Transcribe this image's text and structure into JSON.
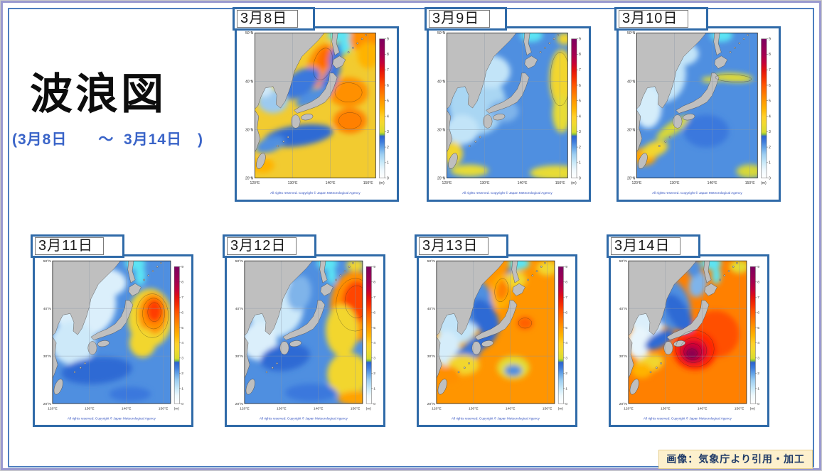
{
  "page": {
    "title": "波浪図",
    "subtitle": "(3月8日　　～  3月14日　)",
    "attribution": "画像：気象庁より引用・加工"
  },
  "map_common": {
    "lat_labels": [
      "50°N",
      "40°N",
      "30°N",
      "20°N"
    ],
    "lon_labels": [
      "120°E",
      "130°E",
      "140°E",
      "150°E"
    ],
    "unit": "(m)",
    "colorbar_ticks": [
      "0",
      "1",
      "2",
      "3",
      "4",
      "5",
      "6",
      "7",
      "8",
      "9"
    ],
    "copyright": "All rights reserved. Copyright © Japan Meteorological Agency",
    "copyright_color": "#3352c0",
    "land_color": "#bfbfbf",
    "coast_color": "#4a4a4a",
    "ice_color": "#5ce4f4",
    "colorbar_stops": [
      {
        "o": 0.0,
        "c": "#ffffff"
      },
      {
        "o": 0.06,
        "c": "#eef8fd"
      },
      {
        "o": 0.11,
        "c": "#c9e9f8"
      },
      {
        "o": 0.17,
        "c": "#9dcef1"
      },
      {
        "o": 0.22,
        "c": "#64a3e6"
      },
      {
        "o": 0.26,
        "c": "#3f7ddb"
      },
      {
        "o": 0.3,
        "c": "#2d62d0"
      },
      {
        "o": 0.315,
        "c": "#8fc53a"
      },
      {
        "o": 0.33,
        "c": "#d8dc30"
      },
      {
        "o": 0.39,
        "c": "#f2d92e"
      },
      {
        "o": 0.44,
        "c": "#ffd02a"
      },
      {
        "o": 0.5,
        "c": "#ffb300"
      },
      {
        "o": 0.56,
        "c": "#ff9500"
      },
      {
        "o": 0.61,
        "c": "#ff7800"
      },
      {
        "o": 0.67,
        "c": "#ff5500"
      },
      {
        "o": 0.72,
        "c": "#f53000"
      },
      {
        "o": 0.78,
        "c": "#e01010"
      },
      {
        "o": 0.83,
        "c": "#c3003a"
      },
      {
        "o": 0.89,
        "c": "#a30050"
      },
      {
        "o": 1.0,
        "c": "#7d0060"
      }
    ]
  },
  "maps": [
    {
      "date": "3月8日",
      "base": "#f2cb30",
      "blobs": [
        [
          140,
          6,
          30,
          16,
          0,
          "#ff9000"
        ],
        [
          150,
          30,
          14,
          18,
          0,
          "#ffb300"
        ],
        [
          88,
          44,
          18,
          30,
          18,
          "#ff9000"
        ],
        [
          92,
          34,
          9,
          15,
          15,
          "#ff6a00"
        ],
        [
          124,
          80,
          26,
          20,
          0,
          "#ff9000"
        ],
        [
          126,
          118,
          22,
          17,
          0,
          "#ff8000"
        ],
        [
          60,
          68,
          30,
          16,
          -35,
          "#3a78dd"
        ],
        [
          100,
          62,
          9,
          26,
          25,
          "#3a78dd"
        ],
        [
          108,
          30,
          8,
          18,
          20,
          "#3a78dd"
        ],
        [
          78,
          86,
          26,
          9,
          -25,
          "#4f8fe0"
        ],
        [
          24,
          92,
          20,
          16,
          0,
          "#9ccaef"
        ],
        [
          12,
          74,
          12,
          12,
          0,
          "#cfe8f8"
        ],
        [
          58,
          138,
          46,
          14,
          -8,
          "#2f6ad4"
        ],
        [
          20,
          150,
          20,
          10,
          -20,
          "#4f8fe0"
        ],
        [
          10,
          178,
          16,
          10,
          0,
          "#ffb300"
        ],
        [
          112,
          3,
          15,
          9,
          0,
          "#5ce4f4"
        ],
        [
          120,
          18,
          7,
          10,
          0,
          "#5ce4f4"
        ]
      ],
      "rings": [
        [
          90,
          42,
          12,
          22,
          15
        ],
        [
          124,
          80,
          18,
          13,
          0
        ],
        [
          126,
          118,
          15,
          11,
          0
        ]
      ]
    },
    {
      "date": "3月9日",
      "base": "#4f8fe0",
      "blobs": [
        [
          40,
          95,
          38,
          42,
          0,
          "#a9d6f3"
        ],
        [
          58,
          52,
          26,
          22,
          0,
          "#c2e4f8"
        ],
        [
          20,
          130,
          22,
          20,
          0,
          "#c2e4f8"
        ],
        [
          75,
          105,
          20,
          15,
          0,
          "#7fb4ea"
        ],
        [
          152,
          62,
          16,
          40,
          0,
          "#f2d62e"
        ],
        [
          152,
          108,
          12,
          26,
          0,
          "#e8dc34"
        ],
        [
          156,
          8,
          10,
          8,
          0,
          "#f2d62e"
        ],
        [
          145,
          188,
          35,
          10,
          0,
          "#e8dc34"
        ],
        [
          8,
          162,
          13,
          16,
          0,
          "#f2d62e"
        ],
        [
          30,
          185,
          25,
          8,
          0,
          "#e8dc34"
        ],
        [
          112,
          3,
          15,
          9,
          0,
          "#5ce4f4"
        ]
      ],
      "rings": [
        [
          150,
          62,
          13,
          36,
          0
        ]
      ]
    },
    {
      "date": "3月10日",
      "base": "#4f8fe0",
      "blobs": [
        [
          35,
          55,
          30,
          38,
          0,
          "#c2e4f8"
        ],
        [
          15,
          100,
          18,
          28,
          0,
          "#d5edfa"
        ],
        [
          60,
          28,
          22,
          16,
          0,
          "#c2e4f8"
        ],
        [
          128,
          60,
          26,
          6,
          3,
          "#e4dc30"
        ],
        [
          98,
          63,
          12,
          4,
          0,
          "#e4dc30"
        ],
        [
          48,
          128,
          26,
          8,
          -35,
          "#d8d838"
        ],
        [
          10,
          166,
          16,
          12,
          0,
          "#ffa200"
        ],
        [
          24,
          156,
          18,
          10,
          -20,
          "#f2d62e"
        ],
        [
          92,
          132,
          30,
          22,
          0,
          "#3a78dd"
        ],
        [
          150,
          186,
          18,
          9,
          0,
          "#d8d838"
        ],
        [
          112,
          3,
          15,
          9,
          0,
          "#5ce4f4"
        ]
      ],
      "rings": [
        [
          128,
          61,
          24,
          5,
          3
        ]
      ]
    },
    {
      "date": "3月11日",
      "base": "#4f8fe0",
      "blobs": [
        [
          42,
          58,
          44,
          46,
          0,
          "#dbeffb"
        ],
        [
          28,
          112,
          30,
          30,
          0,
          "#cde9f9"
        ],
        [
          70,
          30,
          30,
          20,
          0,
          "#dbeffb"
        ],
        [
          132,
          78,
          30,
          40,
          0,
          "#f2d62e"
        ],
        [
          136,
          72,
          20,
          28,
          0,
          "#ff9000"
        ],
        [
          138,
          68,
          11,
          16,
          0,
          "#ff3c00"
        ],
        [
          122,
          112,
          18,
          20,
          0,
          "#f2d62e"
        ],
        [
          60,
          150,
          48,
          18,
          -5,
          "#2f6ad4"
        ],
        [
          105,
          182,
          28,
          10,
          0,
          "#3a78dd"
        ],
        [
          112,
          3,
          14,
          9,
          0,
          "#5ce4f4"
        ],
        [
          119,
          20,
          7,
          14,
          0,
          "#5ce4f4"
        ]
      ],
      "rings": [
        [
          138,
          70,
          9,
          13,
          0
        ],
        [
          137,
          72,
          15,
          21,
          0
        ],
        [
          135,
          75,
          22,
          30,
          0
        ]
      ]
    },
    {
      "date": "3月12日",
      "base": "#4f8fe0",
      "blobs": [
        [
          42,
          62,
          38,
          42,
          0,
          "#cde9f9"
        ],
        [
          20,
          110,
          24,
          26,
          0,
          "#dbeffb"
        ],
        [
          74,
          44,
          16,
          24,
          10,
          "#7fb4ea"
        ],
        [
          150,
          62,
          34,
          48,
          0,
          "#ff9000"
        ],
        [
          153,
          55,
          20,
          28,
          0,
          "#ff4400"
        ],
        [
          132,
          95,
          22,
          35,
          0,
          "#f2d62e"
        ],
        [
          140,
          155,
          28,
          30,
          0,
          "#f2d62e"
        ],
        [
          152,
          188,
          26,
          10,
          0,
          "#ffa200"
        ],
        [
          55,
          132,
          34,
          18,
          -10,
          "#2f6ad4"
        ],
        [
          90,
          180,
          35,
          12,
          0,
          "#3a78dd"
        ],
        [
          150,
          6,
          12,
          8,
          0,
          "#f2d62e"
        ],
        [
          112,
          3,
          14,
          9,
          0,
          "#5ce4f4"
        ],
        [
          118,
          20,
          6,
          12,
          0,
          "#5ce4f4"
        ]
      ],
      "rings": [
        [
          152,
          56,
          16,
          22,
          0
        ],
        [
          150,
          60,
          26,
          36,
          0
        ]
      ]
    },
    {
      "date": "3月13日",
      "base": "#ff9500",
      "blobs": [
        [
          28,
          68,
          34,
          46,
          0,
          "#c2e4f8"
        ],
        [
          14,
          120,
          18,
          24,
          0,
          "#d5edfa"
        ],
        [
          52,
          55,
          24,
          34,
          -20,
          "#4f8fe0"
        ],
        [
          66,
          78,
          16,
          28,
          -28,
          "#2f6ad4"
        ],
        [
          100,
          22,
          7,
          18,
          20,
          "#3a78dd"
        ],
        [
          88,
          42,
          14,
          24,
          10,
          "#ffb300"
        ],
        [
          89,
          40,
          8,
          14,
          10,
          "#ff8000"
        ],
        [
          108,
          26,
          14,
          12,
          0,
          "#f2d62e"
        ],
        [
          58,
          112,
          26,
          10,
          -30,
          "#2f6ad4"
        ],
        [
          42,
          128,
          20,
          12,
          -30,
          "#3a78dd"
        ],
        [
          36,
          142,
          22,
          14,
          0,
          "#f2d62e"
        ],
        [
          16,
          156,
          16,
          12,
          0,
          "#ff9000"
        ],
        [
          104,
          146,
          22,
          16,
          0,
          "#e4dc30"
        ],
        [
          104,
          150,
          12,
          8,
          0,
          "#4f8fe0"
        ],
        [
          120,
          85,
          11,
          9,
          0,
          "#ff6000"
        ],
        [
          150,
          10,
          14,
          10,
          0,
          "#f2d62e"
        ],
        [
          112,
          3,
          14,
          9,
          0,
          "#5ce4f4"
        ]
      ],
      "rings": [
        [
          88,
          40,
          9,
          16,
          8
        ],
        [
          120,
          85,
          9,
          7,
          0
        ]
      ]
    },
    {
      "date": "3月14日",
      "base": "#ff8000",
      "blobs": [
        [
          26,
          62,
          30,
          42,
          0,
          "#dbeffb"
        ],
        [
          14,
          112,
          16,
          22,
          0,
          "#e8f5fc"
        ],
        [
          56,
          58,
          26,
          38,
          -25,
          "#4f8fe0"
        ],
        [
          68,
          72,
          14,
          30,
          -30,
          "#2f6ad4"
        ],
        [
          94,
          32,
          12,
          18,
          15,
          "#7fb4ea"
        ],
        [
          88,
          10,
          10,
          12,
          0,
          "#4f8fe0"
        ],
        [
          118,
          100,
          32,
          32,
          0,
          "#ff5000"
        ],
        [
          90,
          122,
          30,
          27,
          0,
          "#ff2800"
        ],
        [
          88,
          124,
          19,
          17,
          0,
          "#d40030"
        ],
        [
          86,
          127,
          10,
          9,
          0,
          "#8b0050"
        ],
        [
          42,
          108,
          22,
          10,
          -30,
          "#2f6ad4"
        ],
        [
          28,
          140,
          20,
          12,
          -15,
          "#f2d62e"
        ],
        [
          18,
          150,
          14,
          10,
          0,
          "#ffb300"
        ],
        [
          150,
          8,
          13,
          9,
          0,
          "#e4dc30"
        ],
        [
          112,
          3,
          14,
          9,
          0,
          "#5ce4f4"
        ],
        [
          119,
          20,
          6,
          12,
          0,
          "#5ce4f4"
        ]
      ],
      "rings": [
        [
          86,
          126,
          7,
          6,
          0
        ],
        [
          87,
          124,
          12,
          11,
          0
        ],
        [
          88,
          122,
          18,
          17,
          0
        ],
        [
          90,
          120,
          26,
          25,
          0
        ]
      ]
    }
  ]
}
